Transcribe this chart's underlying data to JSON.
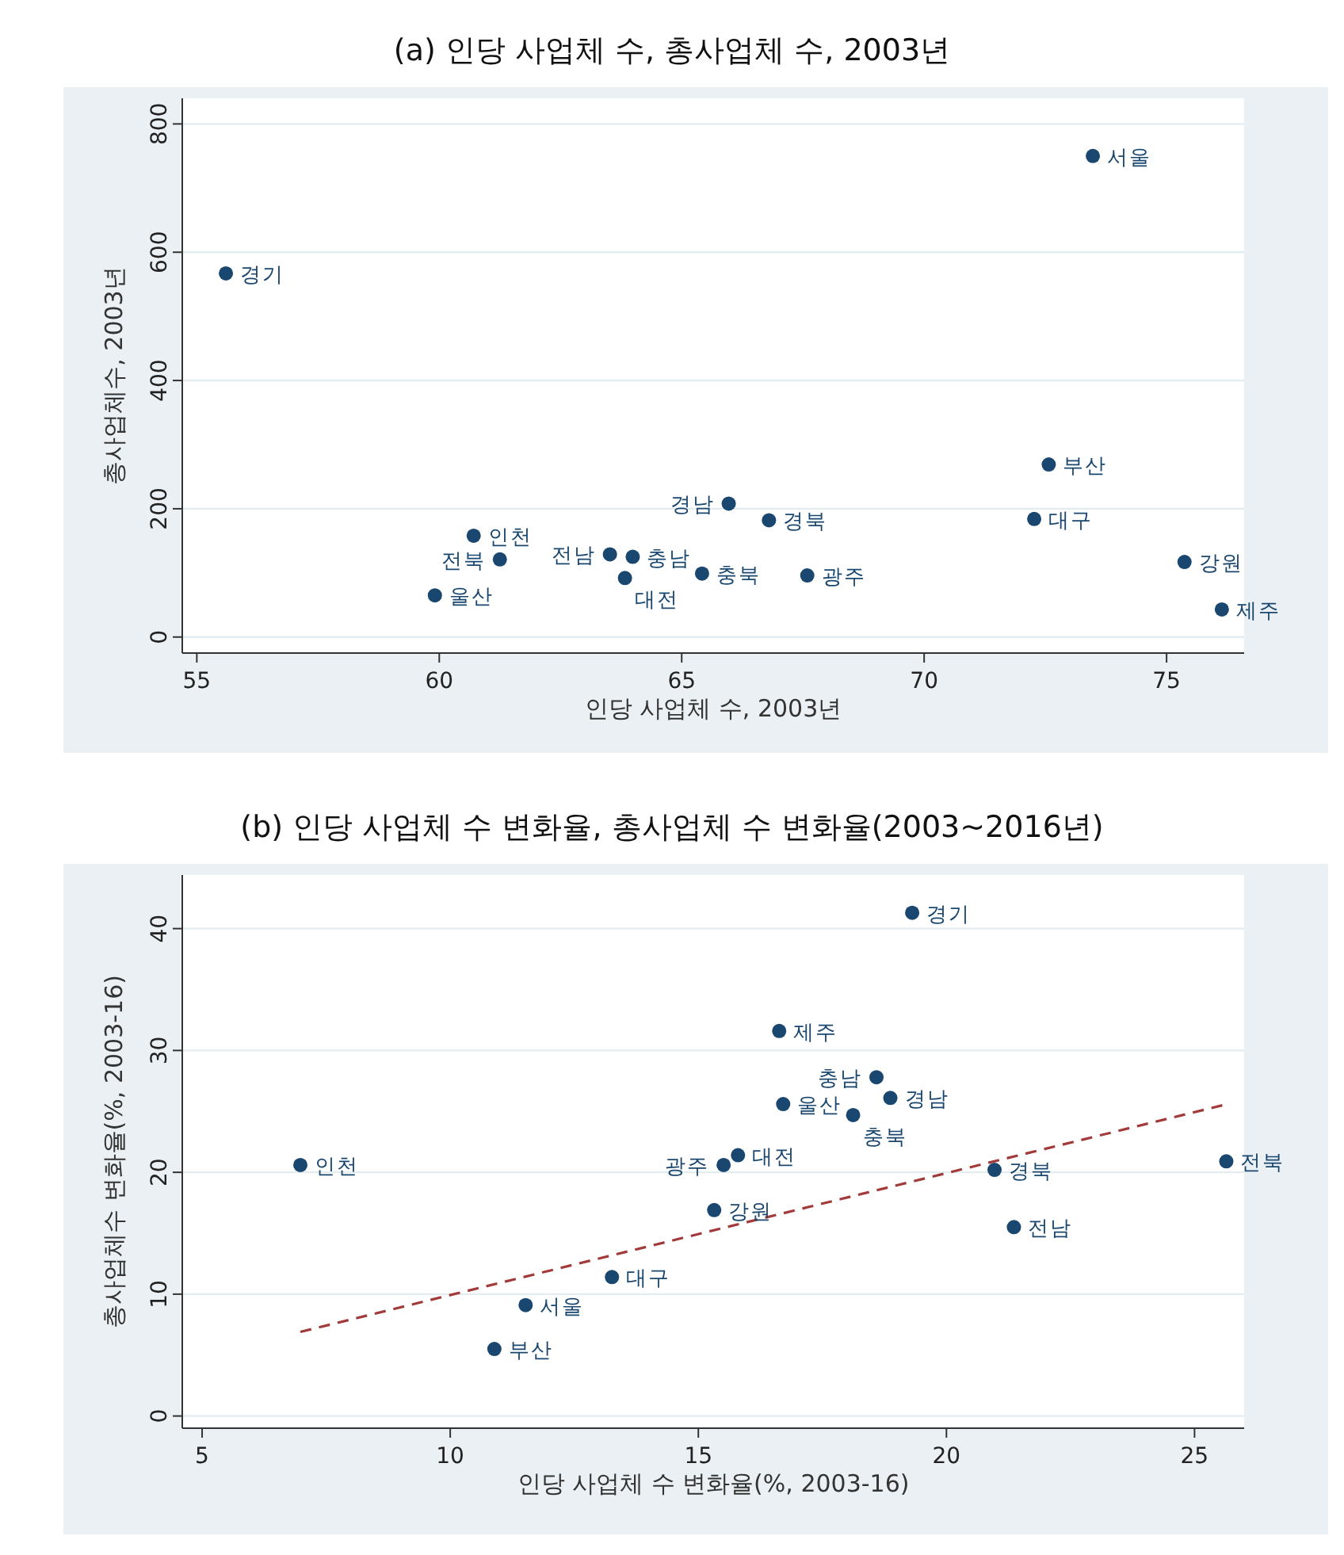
{
  "chart_data": [
    {
      "type": "scatter",
      "title": "(a) 인당 사업체 수, 총사업체 수, 2003년",
      "xlabel": "인당 사업체 수, 2003년",
      "ylabel": "총사업체수, 2003년",
      "xlim": [
        54.7,
        76.6
      ],
      "ylim": [
        -25,
        840
      ],
      "xticks": [
        55,
        60,
        65,
        70,
        75
      ],
      "yticks": [
        0,
        200,
        400,
        600,
        800
      ],
      "grid": "y",
      "marker": "circle",
      "series": [
        {
          "type": "scatter",
          "color": "#1a476f",
          "x": [
            73.48,
            55.6,
            72.57,
            72.27,
            65.97,
            66.8,
            60.71,
            61.25,
            63.52,
            63.99,
            63.83,
            65.42,
            67.59,
            59.91,
            75.37,
            76.14
          ],
          "values": [
            750,
            567,
            269,
            184,
            208,
            182,
            158,
            121,
            129,
            125,
            92,
            99,
            96,
            65,
            117,
            43
          ]
        }
      ],
      "annotations": [
        {
          "text": "서울",
          "x": 73.48,
          "y": 750
        },
        {
          "text": "경기",
          "x": 55.6,
          "y": 567
        },
        {
          "text": "부산",
          "x": 72.57,
          "y": 269
        },
        {
          "text": "대구",
          "x": 72.27,
          "y": 184
        },
        {
          "text": "경남",
          "x": 65.97,
          "y": 208
        },
        {
          "text": "경북",
          "x": 66.8,
          "y": 182
        },
        {
          "text": "인천",
          "x": 60.71,
          "y": 158
        },
        {
          "text": "전북",
          "x": 61.25,
          "y": 121
        },
        {
          "text": "전남",
          "x": 63.52,
          "y": 129
        },
        {
          "text": "충남",
          "x": 63.99,
          "y": 125
        },
        {
          "text": "대전",
          "x": 63.83,
          "y": 92
        },
        {
          "text": "충북",
          "x": 65.42,
          "y": 99
        },
        {
          "text": "광주",
          "x": 67.59,
          "y": 96
        },
        {
          "text": "울산",
          "x": 59.91,
          "y": 65
        },
        {
          "text": "강원",
          "x": 75.37,
          "y": 117
        },
        {
          "text": "제주",
          "x": 76.14,
          "y": 43
        }
      ]
    },
    {
      "type": "scatter",
      "title": "(b) 인당 사업체 수 변화율, 총사업체 수 변화율(2003~2016년)",
      "xlabel": "인당 사업체 수 변화율(%, 2003-16)",
      "ylabel": "총사업체수 변화율(%, 2003-16)",
      "xlim": [
        4.6,
        26.0
      ],
      "ylim": [
        -1,
        44.4
      ],
      "xticks": [
        5,
        10,
        15,
        20,
        25
      ],
      "yticks": [
        0,
        10,
        20,
        30,
        40
      ],
      "grid": "y",
      "marker": "circle",
      "series": [
        {
          "type": "scatter",
          "color": "#1a476f",
          "x": [
            19.31,
            16.63,
            18.59,
            18.87,
            16.71,
            18.12,
            15.8,
            15.51,
            6.98,
            20.97,
            25.64,
            15.32,
            21.36,
            13.26,
            11.52,
            10.89
          ],
          "values": [
            41.3,
            31.6,
            27.8,
            26.1,
            25.6,
            24.7,
            21.4,
            20.6,
            20.6,
            20.2,
            20.9,
            16.9,
            15.5,
            11.4,
            9.1,
            5.5
          ]
        },
        {
          "type": "line",
          "color": "#a23a3a",
          "line_style": "dashed",
          "marker": "none",
          "x": [
            6.98,
            25.56
          ],
          "values": [
            6.9,
            25.5
          ]
        }
      ],
      "annotations": [
        {
          "text": "경기",
          "x": 19.31,
          "y": 41.3
        },
        {
          "text": "제주",
          "x": 16.63,
          "y": 31.6
        },
        {
          "text": "충남",
          "x": 18.59,
          "y": 27.8
        },
        {
          "text": "경남",
          "x": 18.87,
          "y": 26.1
        },
        {
          "text": "울산",
          "x": 16.71,
          "y": 25.6
        },
        {
          "text": "충북",
          "x": 18.12,
          "y": 24.7
        },
        {
          "text": "대전",
          "x": 15.8,
          "y": 21.4
        },
        {
          "text": "광주",
          "x": 15.51,
          "y": 20.6
        },
        {
          "text": "인천",
          "x": 6.98,
          "y": 20.6
        },
        {
          "text": "경북",
          "x": 20.97,
          "y": 20.2
        },
        {
          "text": "전북",
          "x": 25.64,
          "y": 20.9
        },
        {
          "text": "강원",
          "x": 15.32,
          "y": 16.9
        },
        {
          "text": "전남",
          "x": 21.36,
          "y": 15.5
        },
        {
          "text": "대구",
          "x": 13.26,
          "y": 11.4
        },
        {
          "text": "서울",
          "x": 11.52,
          "y": 9.1
        },
        {
          "text": "부산",
          "x": 10.89,
          "y": 5.5
        }
      ]
    }
  ]
}
